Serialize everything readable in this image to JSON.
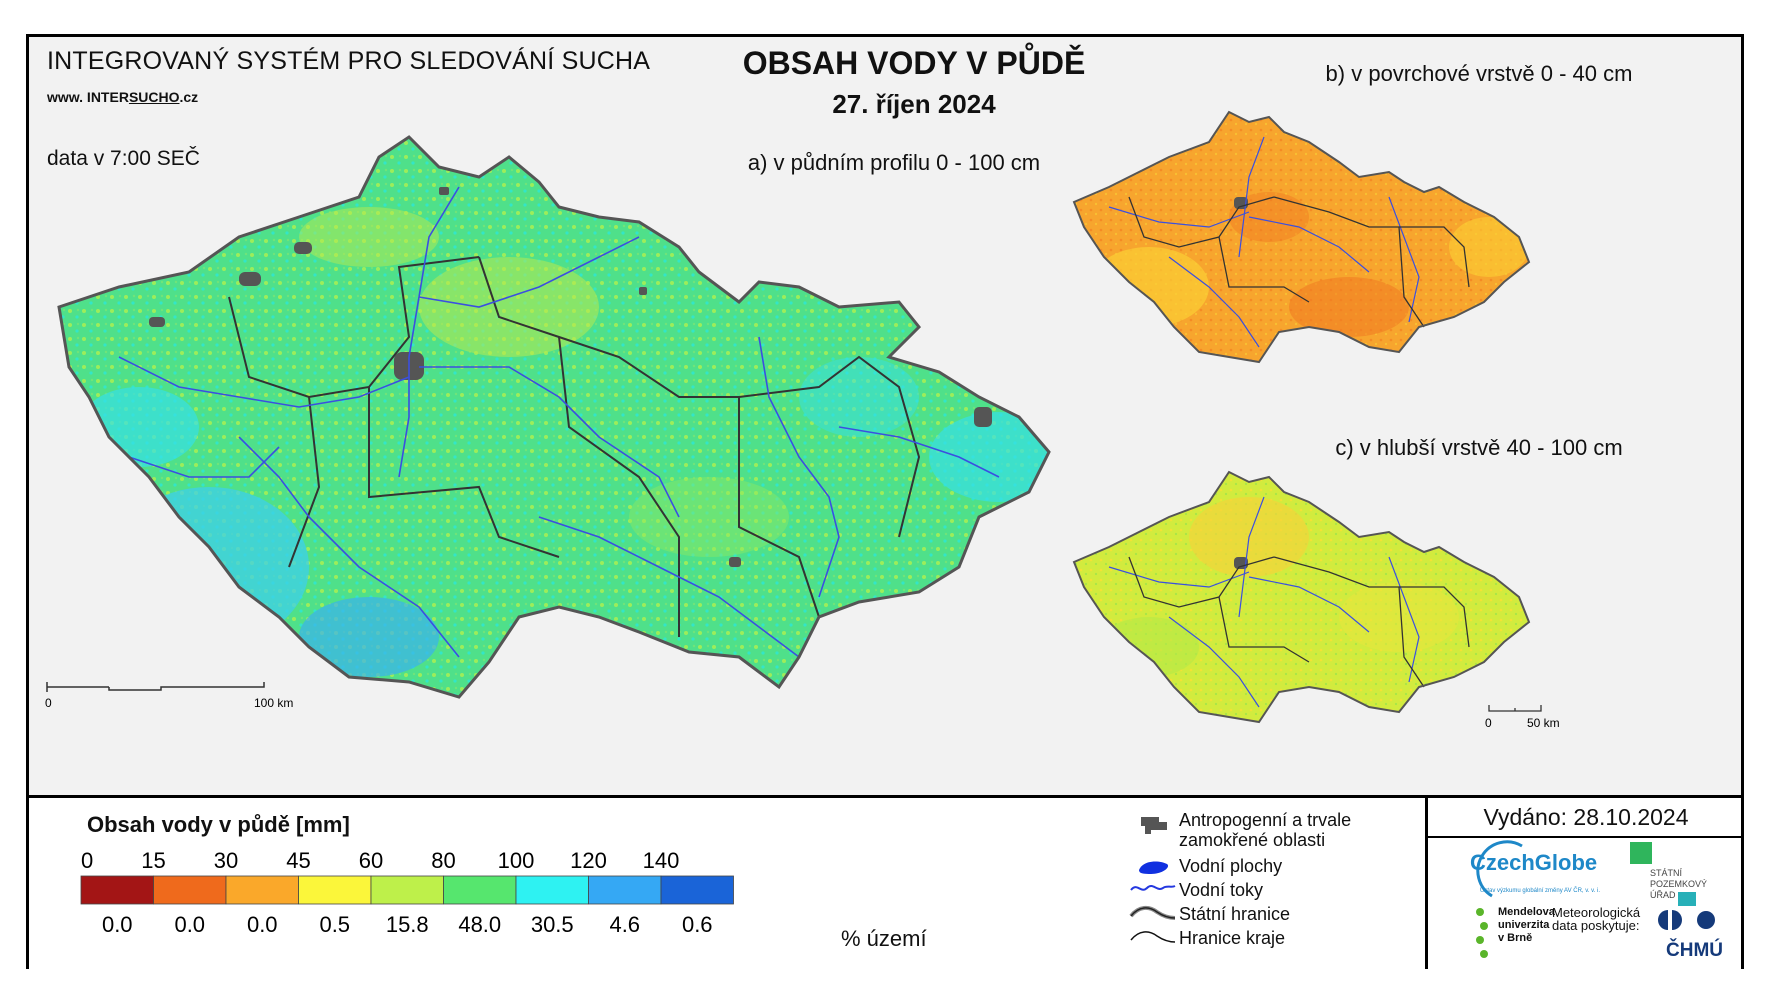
{
  "header": {
    "system_title": "INTEGROVANÝ SYSTÉM PRO SLEDOVÁNÍ SUCHA",
    "website_prefix": "www. INTER",
    "website_underlined": "SUCHO",
    "website_suffix": ".cz",
    "data_time": "data v 7:00 SEČ",
    "main_title": "OBSAH VODY V PŮDĚ",
    "date": "27. říjen 2024"
  },
  "maps": {
    "a_label": "a) v půdním profilu 0 - 100 cm",
    "b_label": "b) v povrchové vrstvě 0 - 40 cm",
    "c_label": "c) v hlubší vrstvě 40 - 100 cm",
    "scale_a": {
      "start": "0",
      "end": "100 km"
    },
    "scale_small": {
      "start": "0",
      "end": "50 km"
    }
  },
  "legend": {
    "title": "Obsah vody v půdě  [mm]",
    "thresholds": [
      "0",
      "15",
      "30",
      "45",
      "60",
      "80",
      "100",
      "120",
      "140"
    ],
    "colors": [
      "#a31515",
      "#ef6a1c",
      "#faa82a",
      "#fbf63a",
      "#bef04a",
      "#56e66e",
      "#2ef2f2",
      "#35a8f4",
      "#1a64d8"
    ],
    "percentages": [
      "0.0",
      "0.0",
      "0.0",
      "0.5",
      "15.8",
      "48.0",
      "30.5",
      "4.6",
      "0.6"
    ],
    "percent_unit": "% území"
  },
  "symbols": [
    {
      "icon": "anthropogenic-area-icon",
      "label": "Antropogenní a trvale zamokřené oblasti"
    },
    {
      "icon": "water-body-icon",
      "label": "Vodní plochy"
    },
    {
      "icon": "river-icon",
      "label": "Vodní toky"
    },
    {
      "icon": "state-border-icon",
      "label": "Státní hranice"
    },
    {
      "icon": "region-border-icon",
      "label": "Hranice kraje"
    }
  ],
  "footer": {
    "issued": "Vydáno: 28.10.2024",
    "czechglobe": "CzechGlobe",
    "czechglobe_sub": "Ústav výzkumu globální změny AV ČR, v. v. i.",
    "spu": "STÁTNÍ POZEMKOVÝ ÚŘAD",
    "mendel": "Mendelova univerzita v Brně",
    "meteo": "Meteorologická data poskytuje:",
    "chmu": "ČHMÚ"
  },
  "map_colors": {
    "a_fill": "#4fe08a",
    "b_fill": "#f7a52e",
    "c_fill": "#d2eb3e",
    "river": "#3b4fe0",
    "border": "#333333",
    "urban": "#555555"
  }
}
